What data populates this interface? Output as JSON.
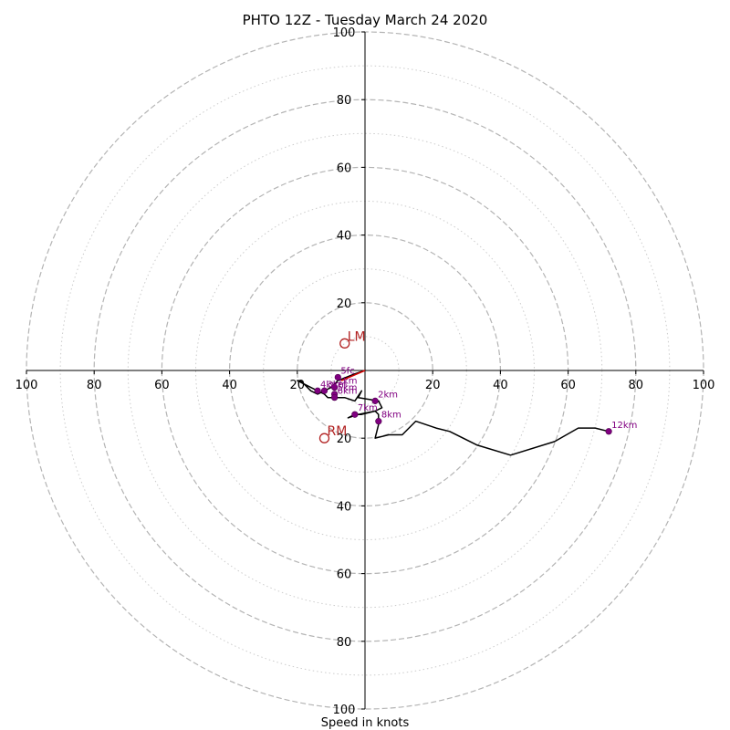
{
  "chart_data": {
    "type": "hodograph",
    "title": "PHTO 12Z - Tuesday March 24 2020",
    "xlabel": "Speed in knots",
    "range": 100,
    "ring_major": [
      20,
      40,
      60,
      80,
      100
    ],
    "ring_minor": [
      10,
      30,
      50,
      70,
      90
    ],
    "ticks": {
      "x_left": [
        "100",
        "80",
        "60",
        "40",
        "20"
      ],
      "x_right": [
        "20",
        "40",
        "60",
        "80",
        "100"
      ],
      "y_top": [
        "100",
        "80",
        "60",
        "40",
        "20"
      ],
      "y_bottom": [
        "20",
        "40",
        "60",
        "80",
        "100"
      ]
    },
    "profile": [
      [
        0,
        0
      ],
      [
        -3,
        -1
      ],
      [
        -8,
        -3
      ],
      [
        -10,
        -5
      ],
      [
        -12,
        -6
      ],
      [
        -14,
        -7
      ],
      [
        -16,
        -6
      ],
      [
        -19,
        -3
      ],
      [
        -20,
        -3
      ],
      [
        -16,
        -5
      ],
      [
        -12,
        -7
      ],
      [
        -11,
        -8
      ],
      [
        -9,
        -8
      ],
      [
        -6,
        -8
      ],
      [
        -3,
        -9
      ],
      [
        -1,
        -6
      ],
      [
        -2,
        -8
      ],
      [
        4,
        -9
      ],
      [
        5,
        -11
      ],
      [
        3,
        -12
      ],
      [
        -1,
        -13
      ],
      [
        -2,
        -13
      ],
      [
        -5,
        -14
      ],
      [
        -3,
        -13
      ],
      [
        -2,
        -13
      ],
      [
        3,
        -12
      ],
      [
        4,
        -13
      ],
      [
        4,
        -15
      ],
      [
        4,
        -16
      ],
      [
        3,
        -20
      ],
      [
        7,
        -19
      ],
      [
        11,
        -19
      ],
      [
        15,
        -15
      ],
      [
        21,
        -17
      ],
      [
        25,
        -18
      ],
      [
        33,
        -22
      ],
      [
        43,
        -25
      ],
      [
        56,
        -21
      ],
      [
        63,
        -17
      ],
      [
        68,
        -17
      ],
      [
        72,
        -18
      ]
    ],
    "height_markers": [
      {
        "label": "5fc",
        "u": -8,
        "v": -2
      },
      {
        "label": "1km",
        "u": -9,
        "v": -5
      },
      {
        "label": "3km",
        "u": -12,
        "v": -6
      },
      {
        "label": "4km",
        "u": -14,
        "v": -6
      },
      {
        "label": "5km",
        "u": -9,
        "v": -7
      },
      {
        "label": "6km",
        "u": -9,
        "v": -8
      },
      {
        "label": "2km",
        "u": 3,
        "v": -9
      },
      {
        "label": "7km",
        "u": -3,
        "v": -13
      },
      {
        "label": "8km",
        "u": 4,
        "v": -15
      },
      {
        "label": "12km",
        "u": 72,
        "v": -18
      }
    ],
    "storm_motion": [
      {
        "label": "LM",
        "u": -6,
        "v": 8
      },
      {
        "label": "RM",
        "u": -12,
        "v": -20
      }
    ],
    "mean_wind_vector": {
      "u": -7,
      "v": -3
    },
    "colors": {
      "profile": "#000000",
      "markers": "#800080",
      "storm_motion": "#b22222",
      "vector": "#d40000",
      "rings": "#b4b4b4"
    }
  }
}
